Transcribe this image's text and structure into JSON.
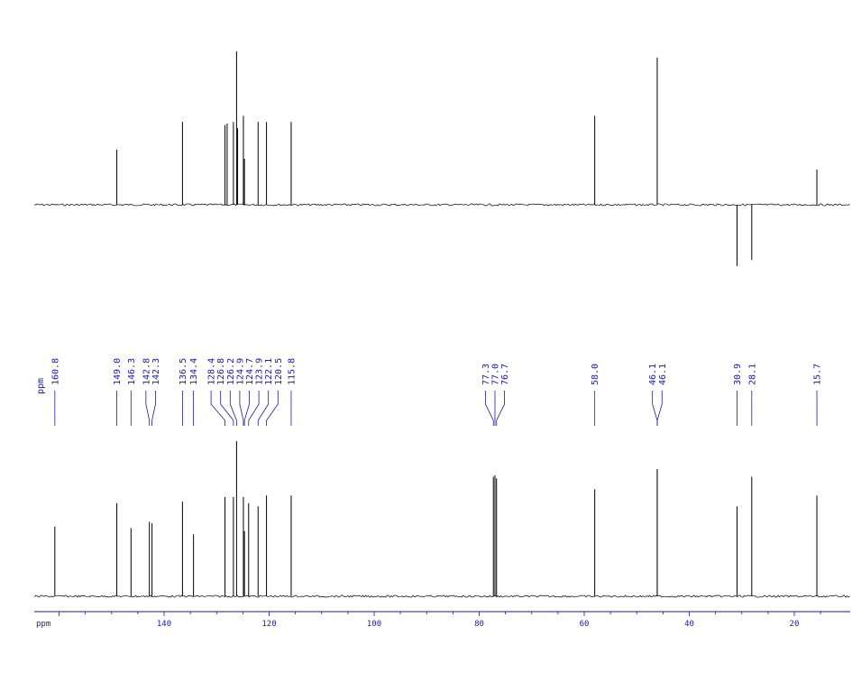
{
  "chart_data": [
    {
      "type": "line",
      "name": "dept-spectrum",
      "x_unit": "ppm",
      "xlim": [
        162,
        11
      ],
      "baseline": 0,
      "peaks": [
        {
          "ppm": 149.0,
          "intensity": 0.36
        },
        {
          "ppm": 136.5,
          "intensity": 0.54
        },
        {
          "ppm": 128.4,
          "intensity": 0.52
        },
        {
          "ppm": 128.0,
          "intensity": 0.53
        },
        {
          "ppm": 126.8,
          "intensity": 0.54
        },
        {
          "ppm": 126.2,
          "intensity": 1.0
        },
        {
          "ppm": 126.0,
          "intensity": 0.5
        },
        {
          "ppm": 124.9,
          "intensity": 0.58
        },
        {
          "ppm": 124.7,
          "intensity": 0.3
        },
        {
          "ppm": 122.1,
          "intensity": 0.54
        },
        {
          "ppm": 120.5,
          "intensity": 0.54
        },
        {
          "ppm": 115.8,
          "intensity": 0.54
        },
        {
          "ppm": 58.0,
          "intensity": 0.58
        },
        {
          "ppm": 46.1,
          "intensity": 0.96
        },
        {
          "ppm": 30.9,
          "intensity": -0.4
        },
        {
          "ppm": 28.1,
          "intensity": -0.36
        },
        {
          "ppm": 15.7,
          "intensity": 0.23
        }
      ]
    },
    {
      "type": "line",
      "name": "c13-spectrum",
      "x_unit": "ppm",
      "xlim": [
        162,
        11
      ],
      "xticks": [
        140,
        120,
        100,
        80,
        60,
        40,
        20
      ],
      "xlabel": "ppm",
      "peak_label_unit": "ppm",
      "peaks": [
        {
          "ppm": 160.8,
          "label": "160.8",
          "intensity": 0.45
        },
        {
          "ppm": 149.0,
          "label": "149.0",
          "intensity": 0.6
        },
        {
          "ppm": 146.3,
          "label": "146.3",
          "intensity": 0.44
        },
        {
          "ppm": 142.8,
          "label": "142.8",
          "intensity": 0.48
        },
        {
          "ppm": 142.3,
          "label": "142.3",
          "intensity": 0.47
        },
        {
          "ppm": 136.5,
          "label": "136.5",
          "intensity": 0.61
        },
        {
          "ppm": 134.4,
          "label": "134.4",
          "intensity": 0.4
        },
        {
          "ppm": 128.4,
          "label": "128.4",
          "intensity": 0.64
        },
        {
          "ppm": 126.8,
          "label": "126.8",
          "intensity": 0.64
        },
        {
          "ppm": 126.2,
          "label": "126.2",
          "intensity": 1.0
        },
        {
          "ppm": 124.9,
          "label": "124.9",
          "intensity": 0.64
        },
        {
          "ppm": 124.7,
          "label": "124.7",
          "intensity": 0.42
        },
        {
          "ppm": 123.9,
          "label": "123.9",
          "intensity": 0.6
        },
        {
          "ppm": 122.1,
          "label": "122.1",
          "intensity": 0.58
        },
        {
          "ppm": 120.5,
          "label": "120.5",
          "intensity": 0.65
        },
        {
          "ppm": 115.8,
          "label": "115.8",
          "intensity": 0.65
        },
        {
          "ppm": 77.3,
          "label": "77.3",
          "intensity": 0.77
        },
        {
          "ppm": 77.0,
          "label": "77.0",
          "intensity": 0.78
        },
        {
          "ppm": 76.7,
          "label": "76.7",
          "intensity": 0.76
        },
        {
          "ppm": 58.0,
          "label": "58.0",
          "intensity": 0.69
        },
        {
          "ppm": 46.1,
          "label": "46.1",
          "intensity": 0.82
        },
        {
          "ppm": 46.1,
          "label": "46.1",
          "intensity": 0.82
        },
        {
          "ppm": 30.9,
          "label": "30.9",
          "intensity": 0.58
        },
        {
          "ppm": 28.1,
          "label": "28.1",
          "intensity": 0.77
        },
        {
          "ppm": 15.7,
          "label": "15.7",
          "intensity": 0.65
        }
      ]
    }
  ],
  "colors": {
    "trace": "#000000",
    "labels": "#1a1aa6",
    "axis": "#1a1aa6"
  }
}
